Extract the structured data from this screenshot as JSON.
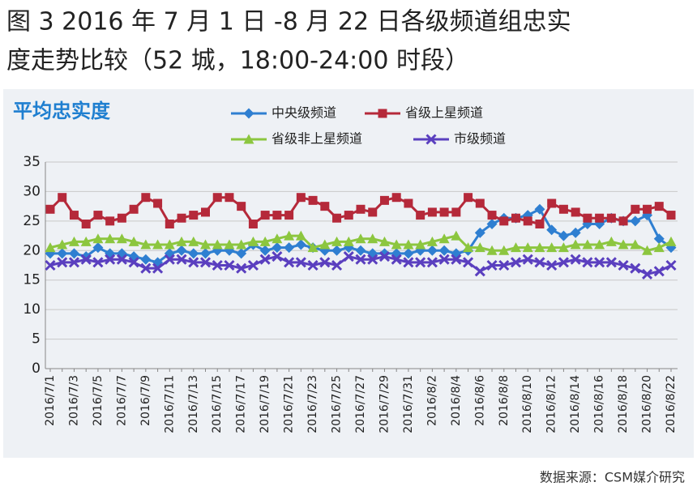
{
  "chart_data": {
    "type": "line",
    "title": [
      "图 3  2016 年 7 月 1 日 -8 月 22 日各级频道组忠实",
      "度走势比较（52 城，18:00-24:00 时段）"
    ],
    "subtitle": "平均忠实度",
    "source": "数据来源：CSM媒介研究",
    "categories": [
      "2016/7/1",
      null,
      "2016/7/3",
      null,
      "2016/7/5",
      null,
      "2016/7/7",
      null,
      "2016/7/9",
      null,
      "2016/7/11",
      null,
      "2016/7/13",
      null,
      "2016/7/15",
      null,
      "2016/7/17",
      null,
      "2016/7/19",
      null,
      "2016/7/21",
      null,
      "2016/7/23",
      null,
      "2016/7/25",
      null,
      "2016/7/27",
      null,
      "2016/7/29",
      null,
      "2016/7/31",
      null,
      "2016/8/2",
      null,
      "2016/8/4",
      null,
      "2016/8/6",
      null,
      "2016/8/8",
      null,
      "2016/8/10",
      null,
      "2016/8/12",
      null,
      "2016/8/14",
      null,
      "2016/8/16",
      null,
      "2016/8/18",
      null,
      "2016/8/20",
      null,
      "2016/8/22"
    ],
    "series": [
      {
        "name": "中央级频道",
        "color": "#2f7fd1",
        "marker": "diamond",
        "values": [
          19.5,
          19.5,
          19.5,
          19,
          20.5,
          19.5,
          19.5,
          19,
          18.5,
          18,
          19.5,
          20,
          19.5,
          19.5,
          20,
          20,
          19.5,
          21,
          20,
          20.5,
          20.5,
          21,
          20.5,
          20,
          20,
          20.5,
          20,
          19.5,
          19.5,
          19.5,
          19.5,
          20,
          20,
          20,
          19.5,
          20,
          23,
          24.5,
          25.5,
          25.5,
          26,
          27,
          23.5,
          22.5,
          23,
          24.5,
          24.5,
          25.5,
          25,
          25,
          26,
          22,
          20.5
        ]
      },
      {
        "name": "省级上星频道",
        "color": "#b5293a",
        "marker": "square",
        "values": [
          27,
          29,
          26,
          24.5,
          26,
          25,
          25.5,
          27,
          29,
          28,
          24.5,
          25.5,
          26,
          26.5,
          29,
          29,
          27.5,
          24.5,
          26,
          26,
          26,
          29,
          28.5,
          27.5,
          25.5,
          26,
          27,
          26.5,
          28.5,
          29,
          28,
          26,
          26.5,
          26.5,
          26.5,
          29,
          28,
          26,
          25,
          25.5,
          25,
          24.5,
          28,
          27,
          26.5,
          25.5,
          25.5,
          25.5,
          25,
          27,
          27,
          27.5,
          26
        ]
      },
      {
        "name": "省级非上星频道",
        "color": "#8cc63f",
        "marker": "triangle",
        "values": [
          20.5,
          21,
          21.5,
          21.5,
          22,
          22,
          22,
          21.5,
          21,
          21,
          21,
          21.5,
          21.5,
          21,
          21,
          21,
          21,
          21.5,
          21.5,
          22,
          22.5,
          22.5,
          20.5,
          21,
          21.5,
          21.5,
          22,
          22,
          21.5,
          21,
          21,
          21,
          21.5,
          22,
          22.5,
          20.5,
          20.5,
          20,
          20,
          20.5,
          20.5,
          20.5,
          20.5,
          20.5,
          21,
          21,
          21,
          21.5,
          21,
          21,
          20,
          20.5,
          21.5
        ]
      },
      {
        "name": "市级频道",
        "color": "#5a3fbf",
        "marker": "x",
        "values": [
          17.5,
          18,
          18,
          18.5,
          18,
          18.5,
          18.5,
          18,
          17,
          17,
          18.5,
          18.5,
          18,
          18,
          17.5,
          17.5,
          17,
          17.5,
          18.5,
          19,
          18,
          18,
          17.5,
          18,
          17.5,
          19,
          18.5,
          18.5,
          19,
          18.5,
          18,
          18,
          18,
          18.5,
          18.5,
          18,
          16.5,
          17.5,
          17.5,
          18,
          18.5,
          18,
          17.5,
          18,
          18.5,
          18,
          18,
          18,
          17.5,
          17,
          16,
          16.5,
          17.5
        ]
      }
    ],
    "ylim": [
      0,
      35
    ],
    "yticks": [
      0,
      5,
      10,
      15,
      20,
      25,
      30,
      35
    ],
    "grid": true
  }
}
